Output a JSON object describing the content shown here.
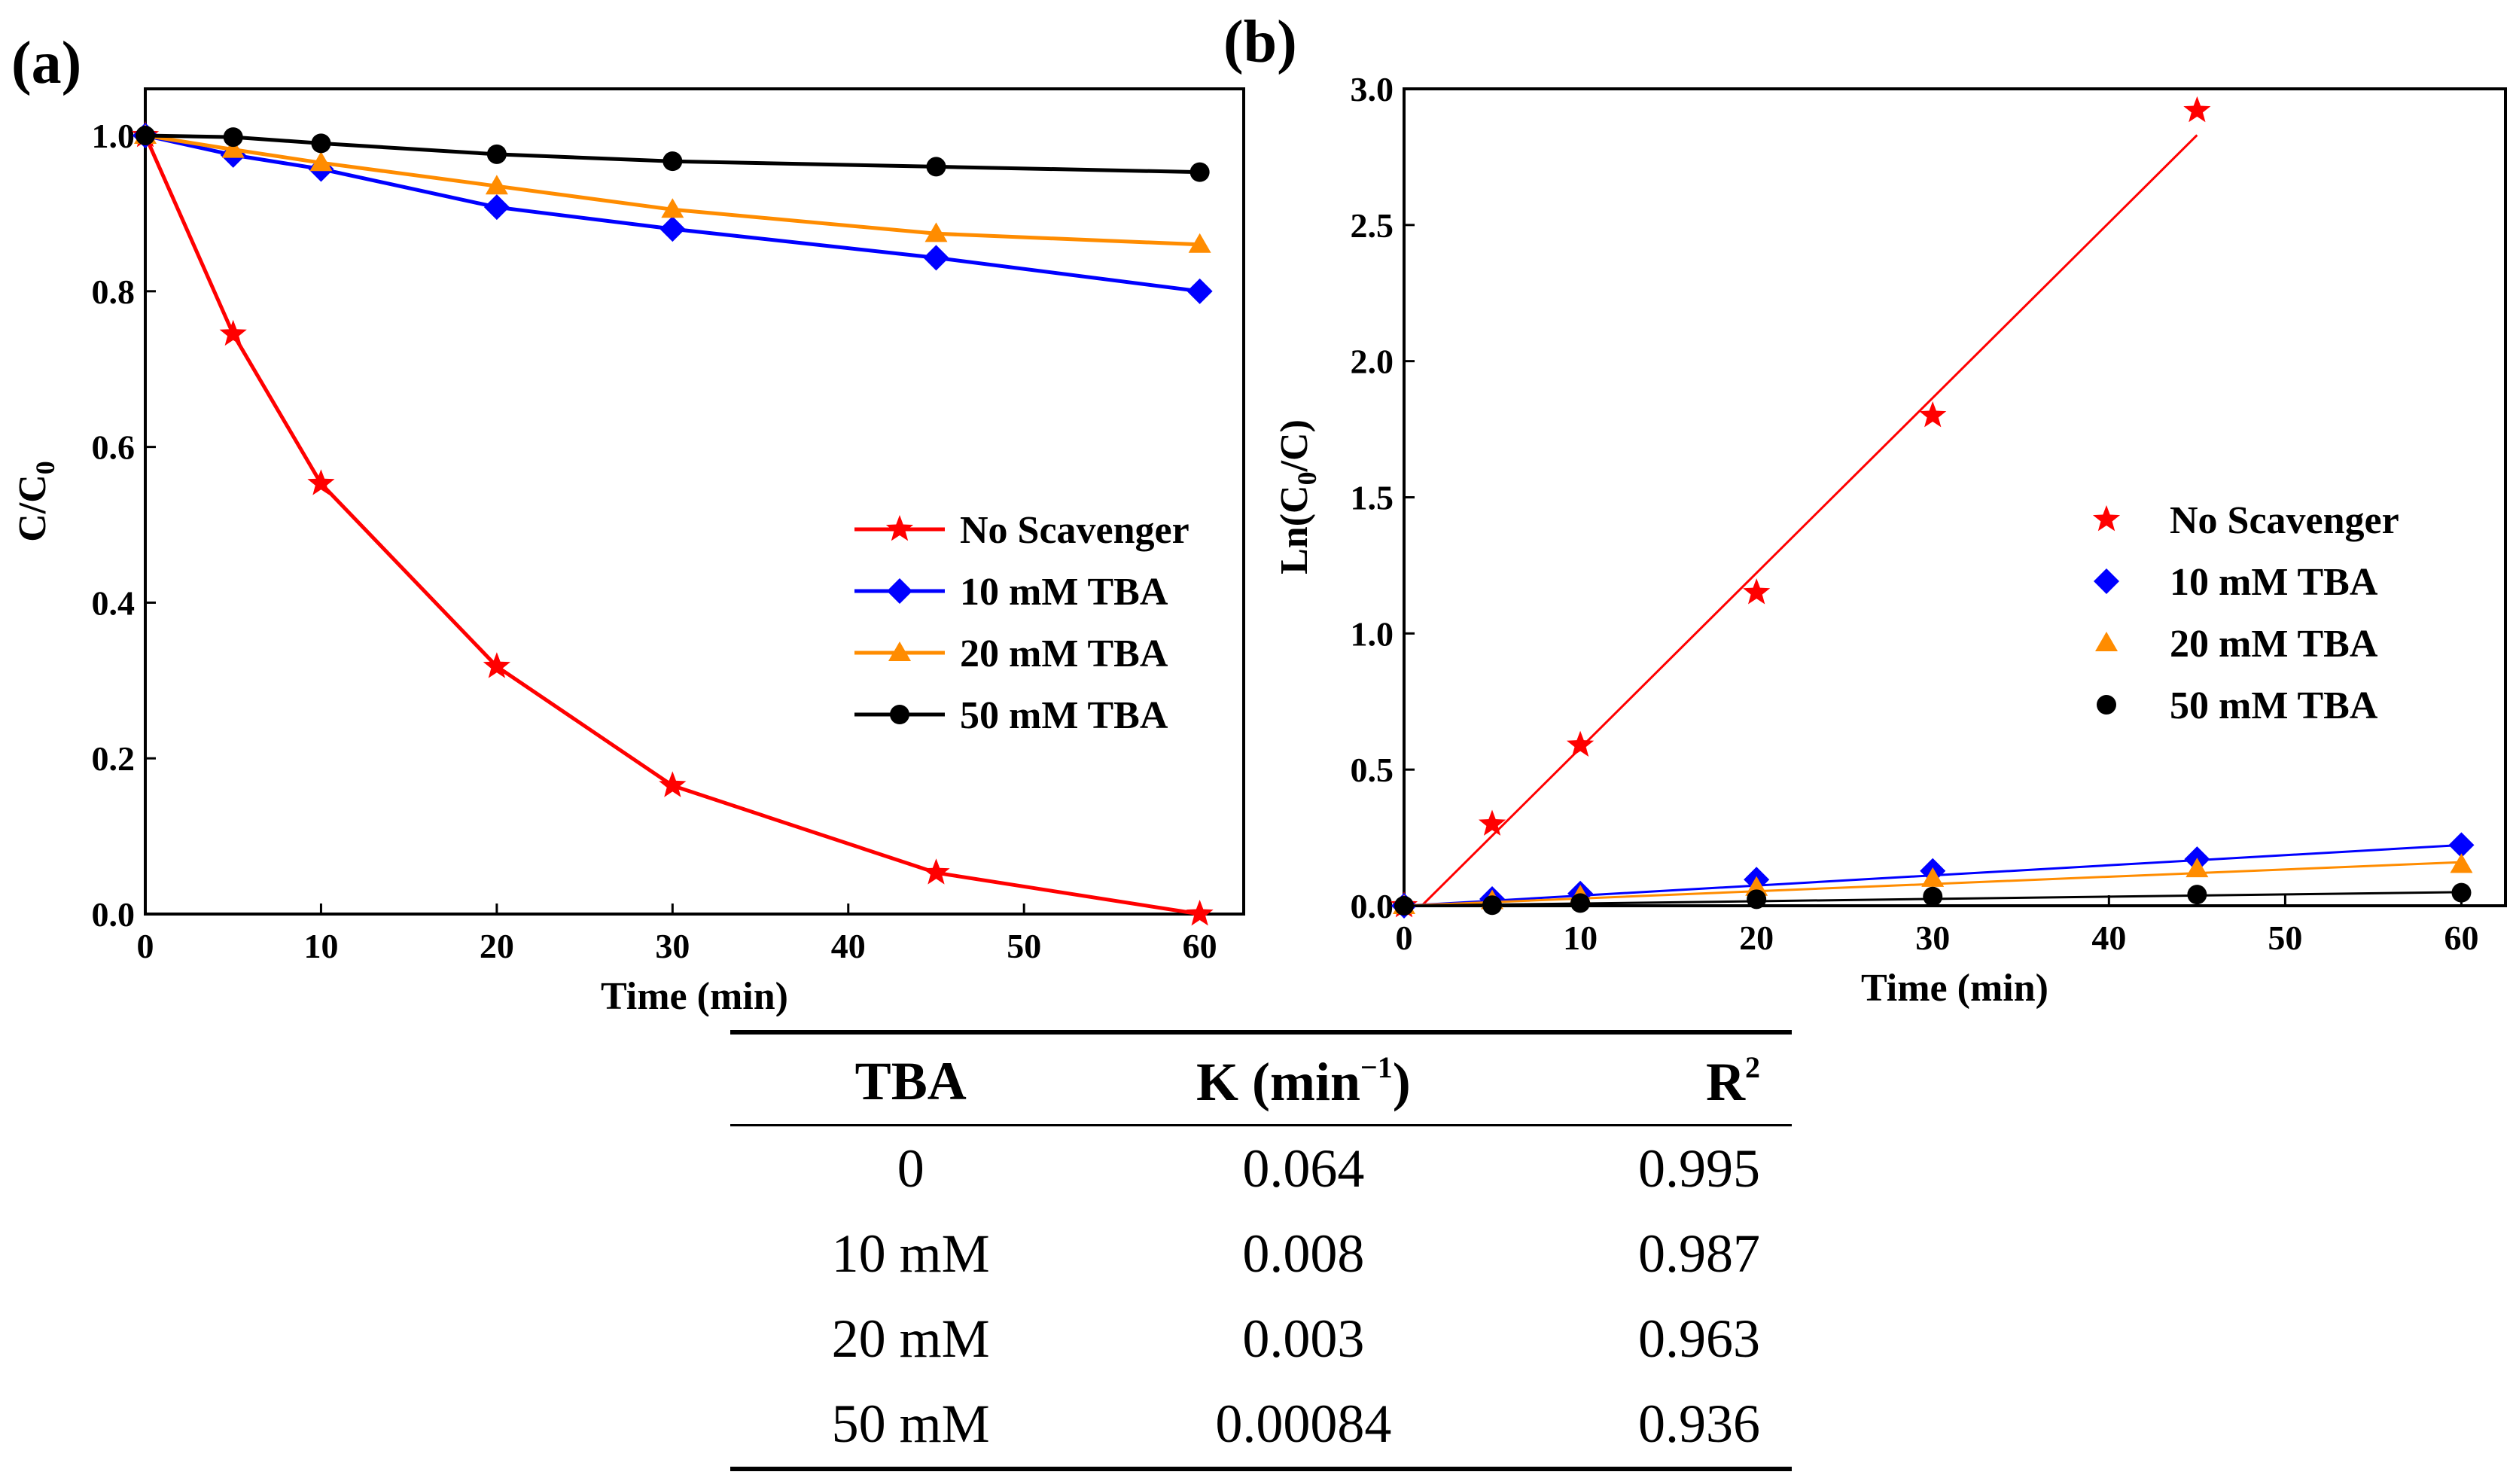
{
  "panel_a_label": "(a)",
  "panel_b_label": "(b)",
  "colors": {
    "no_scavenger": "#ff0000",
    "tba_10": "#0000ff",
    "tba_20": "#ff8c00",
    "tba_50": "#000000",
    "fit_20": "#ff8c00",
    "fit_50": "#000000"
  },
  "chart_data": [
    {
      "type": "line",
      "panel": "(a)",
      "xlabel": "Time (min)",
      "ylabel_main": "C/C",
      "ylabel_sub": "0",
      "xlim": [
        0,
        62.5
      ],
      "ylim": [
        0,
        1.06
      ],
      "xticks": [
        0,
        10,
        20,
        30,
        40,
        50,
        60
      ],
      "yticks": [
        0.0,
        0.2,
        0.4,
        0.6,
        0.8,
        1.0
      ],
      "ytick_labels": [
        "0.0",
        "0.2",
        "0.4",
        "0.6",
        "0.8",
        "1.0"
      ],
      "x": [
        0,
        5,
        10,
        20,
        30,
        45,
        60
      ],
      "legend_position": "center-right",
      "series": [
        {
          "name": "No Scavenger",
          "marker": "star",
          "values": [
            1.0,
            0.745,
            0.553,
            0.318,
            0.165,
            0.053,
            0.0
          ]
        },
        {
          "name": "10 mM TBA",
          "marker": "diamond",
          "values": [
            1.0,
            0.975,
            0.957,
            0.908,
            0.88,
            0.843,
            0.8
          ]
        },
        {
          "name": "20 mM TBA",
          "marker": "triangle",
          "values": [
            1.0,
            0.982,
            0.965,
            0.935,
            0.905,
            0.874,
            0.86
          ]
        },
        {
          "name": "50 mM TBA",
          "marker": "circle",
          "values": [
            1.0,
            0.998,
            0.99,
            0.976,
            0.967,
            0.96,
            0.953
          ]
        }
      ]
    },
    {
      "type": "scatter",
      "panel": "(b)",
      "xlabel": "Time (min)",
      "ylabel_main": "Ln(C",
      "ylabel_sub": "0",
      "ylabel_end": "/C)",
      "xlim": [
        0,
        62.5
      ],
      "ylim": [
        0,
        3.0
      ],
      "xticks": [
        0,
        10,
        20,
        30,
        40,
        50,
        60
      ],
      "yticks": [
        0.0,
        0.5,
        1.0,
        1.5,
        2.0,
        2.5,
        3.0
      ],
      "ytick_labels": [
        "0.0",
        "0.5",
        "1.0",
        "1.5",
        "2.0",
        "2.5",
        "3.0"
      ],
      "x": [
        0,
        5,
        10,
        20,
        30,
        45,
        60
      ],
      "legend_position": "center-right",
      "series": [
        {
          "name": "No Scavenger",
          "marker": "star",
          "values": [
            0.0,
            0.3,
            0.59,
            1.15,
            1.8,
            2.92,
            null
          ],
          "fit": [
            [
              1,
              0.0
            ],
            [
              45,
              2.83
            ]
          ]
        },
        {
          "name": "10 mM TBA",
          "marker": "diamond",
          "values": [
            0.0,
            0.025,
            0.045,
            0.096,
            0.128,
            0.171,
            0.223
          ],
          "fit": [
            [
              0,
              0.0
            ],
            [
              60,
              0.223
            ]
          ]
        },
        {
          "name": "20 mM TBA",
          "marker": "triangle",
          "values": [
            0.0,
            0.018,
            0.036,
            0.067,
            0.1,
            0.135,
            0.151
          ],
          "fit": [
            [
              0,
              0.0
            ],
            [
              60,
              0.16
            ]
          ]
        },
        {
          "name": "50 mM TBA",
          "marker": "circle",
          "values": [
            0.0,
            0.002,
            0.01,
            0.024,
            0.034,
            0.041,
            0.048
          ],
          "fit": [
            [
              0,
              0.0
            ],
            [
              60,
              0.05
            ]
          ]
        }
      ]
    }
  ],
  "table": {
    "headers": {
      "tba": "TBA",
      "k": "K (min",
      "k_sup": "−1",
      "k_close": ")",
      "r": "R",
      "r_sup": "2"
    },
    "rows": [
      {
        "tba": "0",
        "k": "0.064",
        "r2": "0.995"
      },
      {
        "tba": "10 mM",
        "k": "0.008",
        "r2": "0.987"
      },
      {
        "tba": "20 mM",
        "k": "0.003",
        "r2": "0.963"
      },
      {
        "tba": "50 mM",
        "k": "0.00084",
        "r2": "0.936"
      }
    ]
  }
}
